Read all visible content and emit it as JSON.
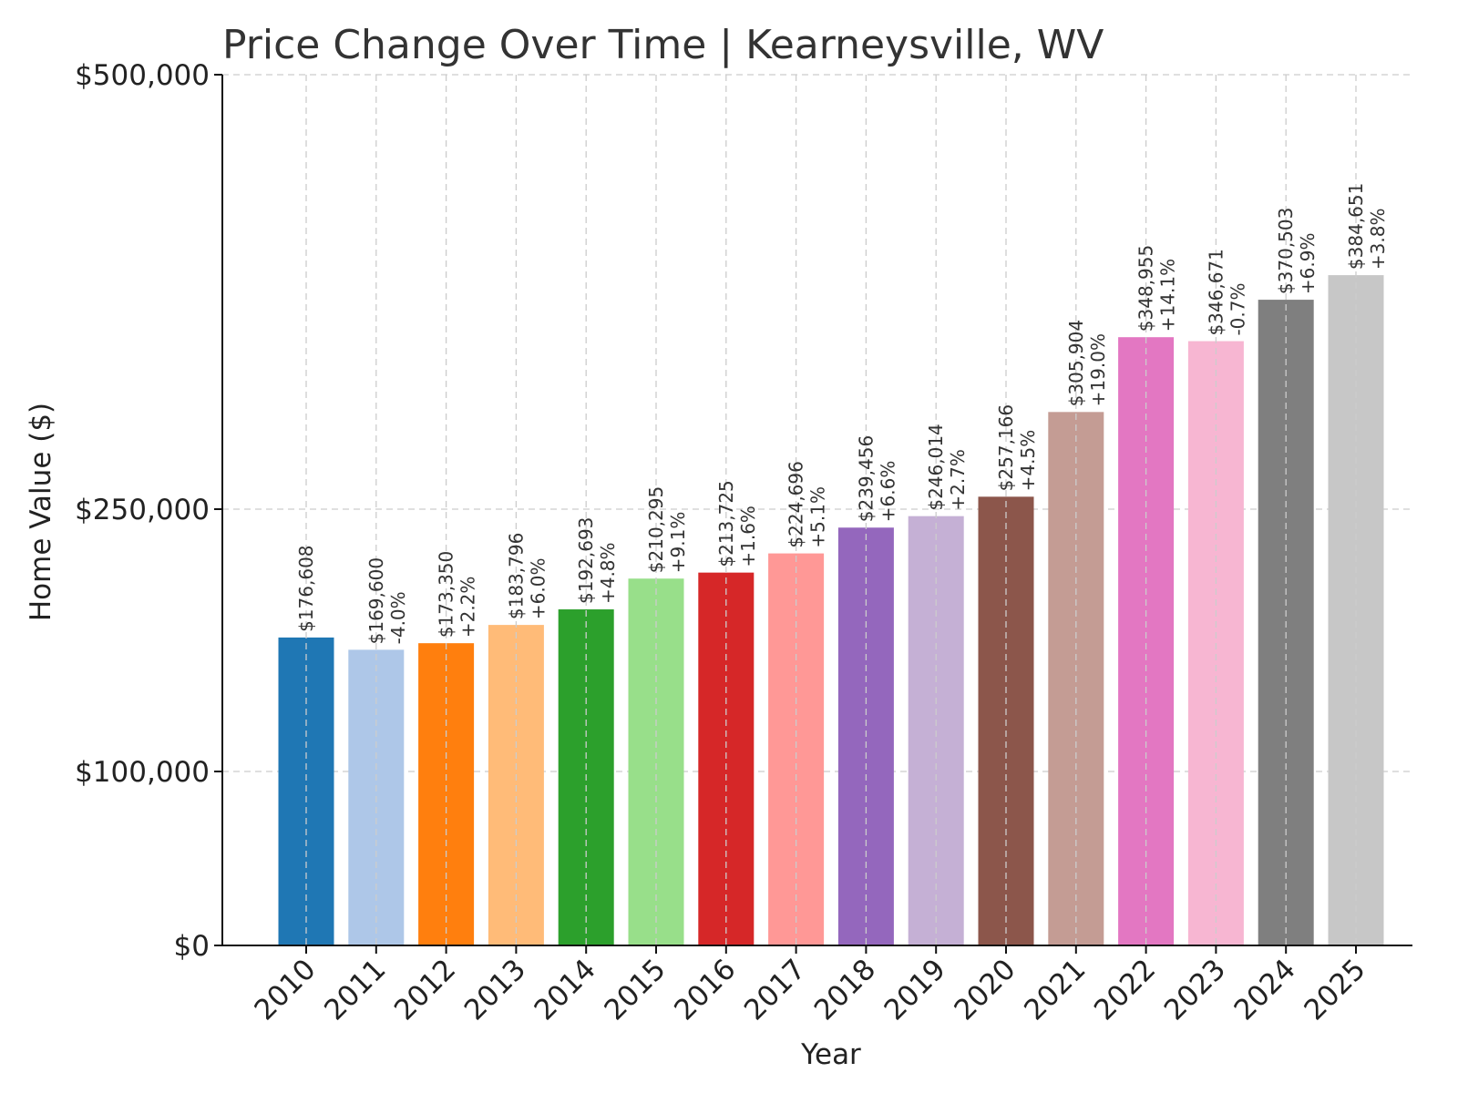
{
  "chart_data": {
    "type": "bar",
    "title": "Price Change Over Time | Kearneysville, WV",
    "xlabel": "Year",
    "ylabel": "Home Value ($)",
    "ylim": [
      0,
      500000
    ],
    "yticks": [
      0,
      100000,
      250000,
      500000
    ],
    "ytick_labels": [
      "$0",
      "$100,000",
      "$250,000",
      "$500,000"
    ],
    "grid": true,
    "categories": [
      "2010",
      "2011",
      "2012",
      "2013",
      "2014",
      "2015",
      "2016",
      "2017",
      "2018",
      "2019",
      "2020",
      "2021",
      "2022",
      "2023",
      "2024",
      "2025"
    ],
    "values": [
      176608,
      169600,
      173350,
      183796,
      192693,
      210295,
      213725,
      224696,
      239456,
      246014,
      257166,
      305904,
      348955,
      346671,
      370503,
      384651
    ],
    "value_labels": [
      "$176,608",
      "$169,600",
      "$173,350",
      "$183,796",
      "$192,693",
      "$210,295",
      "$213,725",
      "$224,696",
      "$239,456",
      "$246,014",
      "$257,166",
      "$305,904",
      "$348,955",
      "$346,671",
      "$370,503",
      "$384,651"
    ],
    "change_labels": [
      "",
      "-4.0%",
      "+2.2%",
      "+6.0%",
      "+4.8%",
      "+9.1%",
      "+1.6%",
      "+5.1%",
      "+6.6%",
      "+2.7%",
      "+4.5%",
      "+19.0%",
      "+14.1%",
      "-0.7%",
      "+6.9%",
      "+3.8%"
    ],
    "colors": [
      "#1f77b4",
      "#aec7e8",
      "#ff7f0e",
      "#ffbb78",
      "#2ca02c",
      "#98df8a",
      "#d62728",
      "#ff9896",
      "#9467bd",
      "#c5b0d5",
      "#8c564b",
      "#c49c94",
      "#e377c2",
      "#f7b6d2",
      "#7f7f7f",
      "#c7c7c7"
    ]
  }
}
